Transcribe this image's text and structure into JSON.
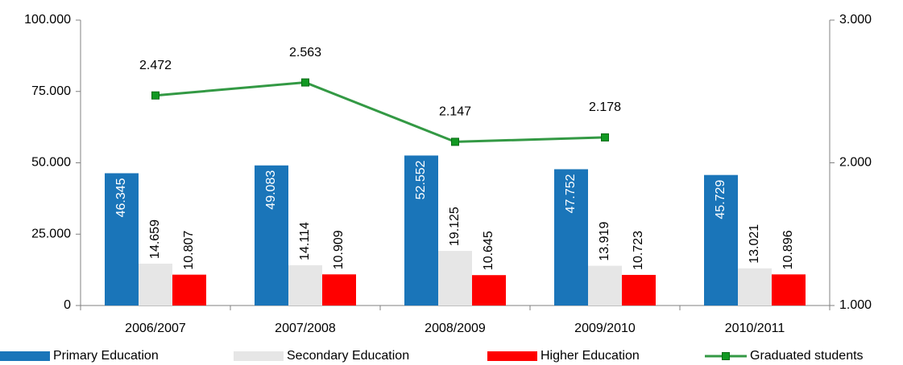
{
  "chart_data": {
    "type": "bar",
    "categories": [
      "2006/2007",
      "2007/2008",
      "2008/2009",
      "2009/2010",
      "2010/2011"
    ],
    "series": [
      {
        "name": "Primary Education",
        "color": "#1a75b9",
        "values": [
          46345,
          49083,
          52552,
          47752,
          45729
        ],
        "value_labels": [
          "46.345",
          "49.083",
          "52.552",
          "47.752",
          "45.729"
        ]
      },
      {
        "name": "Secondary Education",
        "color": "#e6e6e6",
        "values": [
          14659,
          14114,
          19125,
          13919,
          13021
        ],
        "value_labels": [
          "14.659",
          "14.114",
          "19.125",
          "13.919",
          "13.021"
        ]
      },
      {
        "name": "Higher Education",
        "color": "#ff0000",
        "values": [
          10807,
          10909,
          10645,
          10723,
          10896
        ],
        "value_labels": [
          "10.807",
          "10.909",
          "10.645",
          "10.723",
          "10.896"
        ]
      },
      {
        "name": "Graduated students",
        "type": "line",
        "axis": "y2",
        "color": "#339944",
        "values": [
          2472,
          2563,
          2147,
          2178,
          null
        ],
        "value_labels": [
          "2.472",
          "2.563",
          "2.147",
          "2.178",
          null
        ]
      }
    ],
    "ylim": [
      0,
      100000
    ],
    "yticks": [
      0,
      {
        "value": 25000,
        "label": "25.000"
      },
      {
        "value": 50000,
        "label": "50.000"
      },
      {
        "value": 75000,
        "label": "75.000"
      },
      {
        "value": 100000,
        "label": "100.000"
      }
    ],
    "y2lim": [
      1000,
      3000
    ],
    "y2ticks": [
      {
        "value": 1000,
        "label": "1.000"
      },
      {
        "value": 2000,
        "label": "2.000"
      },
      {
        "value": 3000,
        "label": "3.000"
      }
    ],
    "legend": "bottom"
  }
}
